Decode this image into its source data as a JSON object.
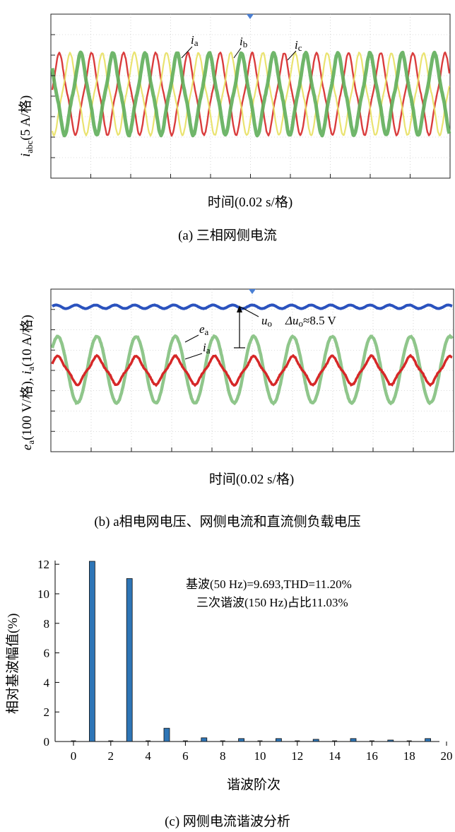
{
  "panel_a": {
    "ylabel_main": "i",
    "ylabel_sub": "abc",
    "ylabel_rest": "(5 A/格)",
    "xlabel": "时间(0.02 s/格)",
    "caption": "(a) 三相网侧电流",
    "labels": {
      "ia_main": "i",
      "ia_sub": "a",
      "ib_main": "i",
      "ib_sub": "b",
      "ic_main": "i",
      "ic_sub": "c"
    }
  },
  "panel_b": {
    "ylabel": "e(100 V/格), i(10 A/格)",
    "ylabel_e": "e",
    "ylabel_e_sub": "a",
    "ylabel_mid": "(100 V/格), ",
    "ylabel_i": "i",
    "ylabel_i_sub": "a",
    "ylabel_end": "(10 A/格)",
    "xlabel": "时间(0.02 s/格)",
    "caption": "(b) a相电网电压、网侧电流和直流侧负载电压",
    "labels": {
      "uo_main": "u",
      "uo_sub": "o",
      "du_prefix": "Δu",
      "du_sub": "o",
      "du_rest": "≈8.5 V",
      "ea_main": "e",
      "ea_sub": "a",
      "ia_main": "i",
      "ia_sub": "a"
    }
  },
  "panel_c": {
    "ylabel": "相对基波幅值(%)",
    "xlabel": "谐波阶次",
    "caption": "(c) 网侧电流谐波分析",
    "annotation_line1": "基波(50 Hz)=9.693,THD=11.20%",
    "annotation_line2": "三次谐波(150 Hz)占比11.03%",
    "xticks": [
      "0",
      "2",
      "4",
      "6",
      "8",
      "10",
      "12",
      "14",
      "16",
      "18",
      "20"
    ],
    "yticks": [
      "0",
      "2",
      "4",
      "6",
      "8",
      "10",
      "12"
    ]
  },
  "colors": {
    "red": "#d62828",
    "green": "#5fae5a",
    "yellow": "#e8e060",
    "blue": "#2a52be",
    "bar": "#2e75b6",
    "grid": "#b9b9b9"
  },
  "chart_data": [
    {
      "type": "line",
      "title": "(a) 三相网侧电流",
      "xlabel": "时间(0.02 s/格)",
      "ylabel": "iabc(5 A/格)",
      "series": [
        {
          "name": "ia",
          "amplitude_div": 1.9
        },
        {
          "name": "ib",
          "amplitude_div": 1.9
        },
        {
          "name": "ic",
          "amplitude_div": 1.9
        }
      ],
      "x_divisions": 10,
      "y_divisions": 8,
      "fundamental_hz": 50
    },
    {
      "type": "line",
      "title": "(b) a相电网电压、网侧电流和直流侧负载电压",
      "xlabel": "时间(0.02 s/格)",
      "ylabel": "ea(100 V/格), ia(10 A/格)",
      "series": [
        {
          "name": "uo",
          "ripple_v": 8.5
        },
        {
          "name": "ea",
          "amplitude_div": 1.9
        },
        {
          "name": "ia",
          "amplitude_div": 0.75
        }
      ],
      "x_divisions": 10,
      "y_divisions": 8,
      "fundamental_hz": 50
    },
    {
      "type": "bar",
      "title": "(c) 网侧电流谐波分析",
      "xlabel": "谐波阶次",
      "ylabel": "相对基波幅值(%)",
      "x": [
        1,
        3,
        5,
        7,
        9,
        11,
        13,
        15,
        17,
        19
      ],
      "values": [
        12.2,
        11.03,
        0.9,
        0.25,
        0.2,
        0.2,
        0.15,
        0.2,
        0.1,
        0.2
      ],
      "xlim": [
        -0.5,
        20
      ],
      "ylim": [
        0,
        12.2
      ],
      "fundamental_hz": 50,
      "fundamental": 9.693,
      "thd_percent": 11.2,
      "third_harmonic_percent": 11.03
    }
  ]
}
